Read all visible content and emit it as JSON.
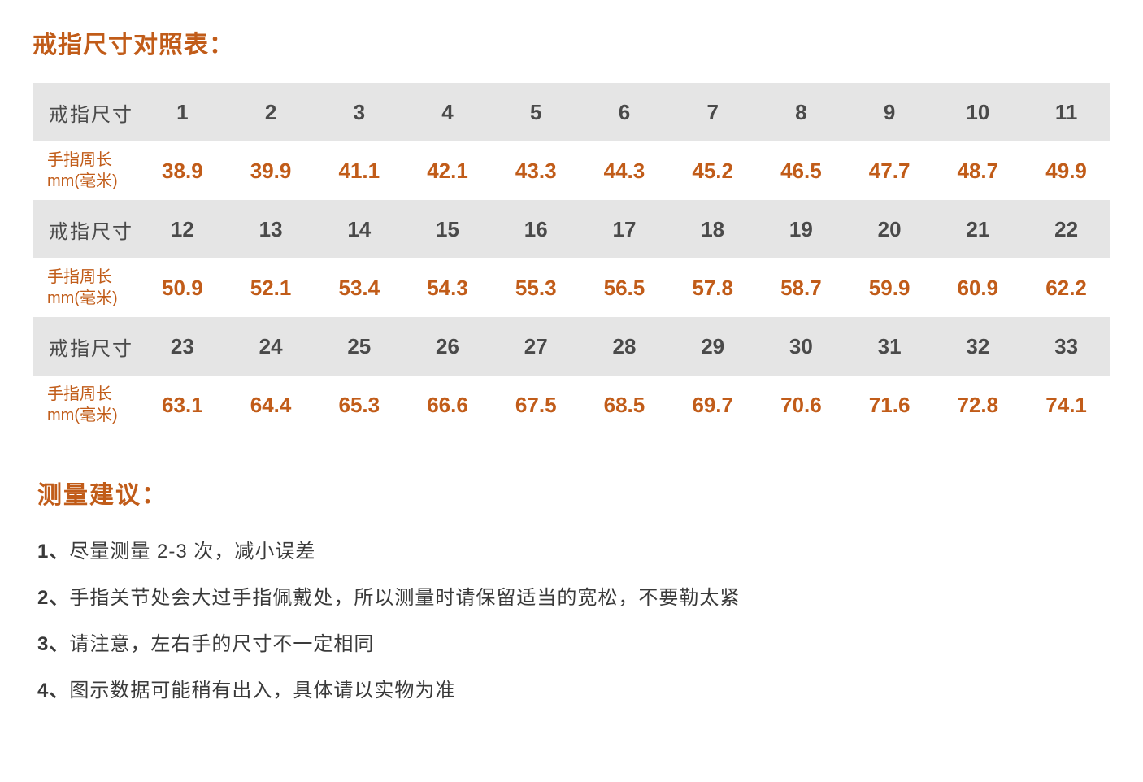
{
  "title": "戒指尺寸对照表：",
  "table": {
    "size_label": "戒指尺寸",
    "circumference_label_line1": "手指周长",
    "circumference_label_line2": "mm(毫米)",
    "header_bg": "#e5e5e5",
    "data_bg": "#ffffff",
    "header_text_color": "#4a4a4a",
    "data_text_color": "#c15c19",
    "header_fontsize": 26,
    "data_fontsize": 26,
    "label_fontsize": 24,
    "rows": [
      {
        "sizes": [
          "1",
          "2",
          "3",
          "4",
          "5",
          "6",
          "7",
          "8",
          "9",
          "10",
          "11"
        ],
        "circs": [
          "38.9",
          "39.9",
          "41.1",
          "42.1",
          "43.3",
          "44.3",
          "45.2",
          "46.5",
          "47.7",
          "48.7",
          "49.9"
        ]
      },
      {
        "sizes": [
          "12",
          "13",
          "14",
          "15",
          "16",
          "17",
          "18",
          "19",
          "20",
          "21",
          "22"
        ],
        "circs": [
          "50.9",
          "52.1",
          "53.4",
          "54.3",
          "55.3",
          "56.5",
          "57.8",
          "58.7",
          "59.9",
          "60.9",
          "62.2"
        ]
      },
      {
        "sizes": [
          "23",
          "24",
          "25",
          "26",
          "27",
          "28",
          "29",
          "30",
          "31",
          "32",
          "33"
        ],
        "circs": [
          "63.1",
          "64.4",
          "65.3",
          "66.6",
          "67.5",
          "68.5",
          "69.7",
          "70.6",
          "71.6",
          "72.8",
          "74.1"
        ]
      }
    ]
  },
  "advice": {
    "title": "测量建议：",
    "items": [
      {
        "num": "1、",
        "text": "尽量测量 2-3 次，减小误差"
      },
      {
        "num": "2、",
        "text": "手指关节处会大过手指佩戴处，所以测量时请保留适当的宽松，不要勒太紧"
      },
      {
        "num": "3、",
        "text": "请注意，左右手的尺寸不一定相同"
      },
      {
        "num": "4、",
        "text": "图示数据可能稍有出入，具体请以实物为准"
      }
    ]
  },
  "colors": {
    "accent": "#c15c19",
    "text": "#3a3a3a",
    "header_text": "#4a4a4a",
    "background": "#ffffff"
  }
}
